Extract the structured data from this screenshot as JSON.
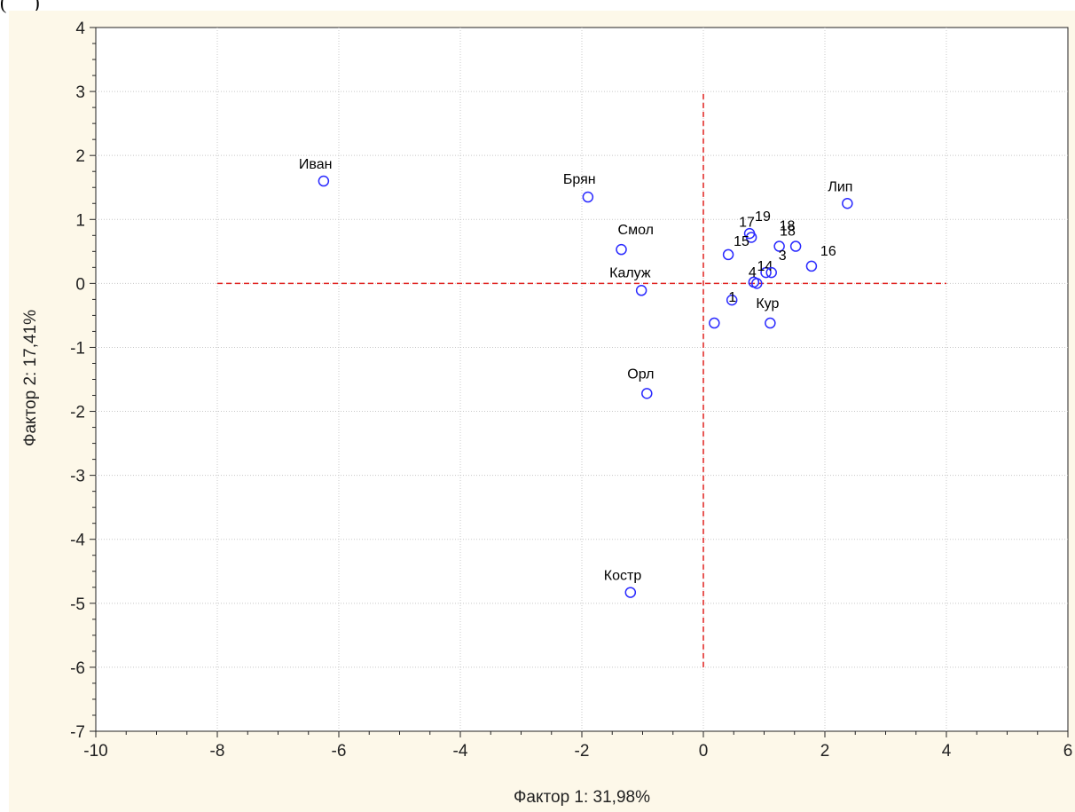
{
  "header": {
    "fragment": "(",
    "fragment_suffix": ")"
  },
  "chart_data": {
    "type": "scatter",
    "xlabel": "Фактор 1: 31,98%",
    "ylabel": "Фактор 2: 17,41%",
    "xlim": [
      -10,
      6
    ],
    "ylim": [
      -7,
      4
    ],
    "x_ticks": [
      "-10",
      "-8",
      "-6",
      "-4",
      "-2",
      "0",
      "2",
      "4",
      "6"
    ],
    "y_ticks": [
      "4",
      "3",
      "2",
      "1",
      "0",
      "-1",
      "-2",
      "-3",
      "-4",
      "-5",
      "-6",
      "-7"
    ],
    "grid": true,
    "marker_color": "#2a2aff",
    "reference_line_color": "#e0201e",
    "reference_lines": [
      {
        "orientation": "horizontal",
        "y": 0,
        "x_from": -8,
        "x_to": 4
      },
      {
        "orientation": "vertical",
        "x": 0,
        "y_from": -6,
        "y_to": 3
      }
    ],
    "points": [
      {
        "label": "Иван",
        "x": -6.25,
        "y": 1.6
      },
      {
        "label": "Брян",
        "x": -1.9,
        "y": 1.35
      },
      {
        "label": "Смол",
        "x": -1.35,
        "y": 0.53
      },
      {
        "label": "Калуж",
        "x": -1.02,
        "y": -0.11
      },
      {
        "label": "Орл",
        "x": -0.93,
        "y": -1.72
      },
      {
        "label": "Костр",
        "x": -1.2,
        "y": -4.83
      },
      {
        "label": "Лип",
        "x": 2.37,
        "y": 1.25
      },
      {
        "label": "Кур",
        "x": 1.1,
        "y": -0.62
      },
      {
        "label": "19",
        "x": 0.76,
        "y": 0.78
      },
      {
        "label": "17",
        "x": 0.79,
        "y": 0.72
      },
      {
        "label": "18",
        "x": 1.25,
        "y": 0.58
      },
      {
        "label": "18",
        "x": 1.52,
        "y": 0.58
      },
      {
        "label": "16",
        "x": 1.78,
        "y": 0.27
      },
      {
        "label": "15",
        "x": 0.41,
        "y": 0.45
      },
      {
        "label": "14",
        "x": 1.03,
        "y": 0.17
      },
      {
        "label": "3",
        "x": 1.12,
        "y": 0.17
      },
      {
        "label": "4",
        "x": 0.83,
        "y": 0.02
      },
      {
        "label": "",
        "x": 0.88,
        "y": 0.0
      },
      {
        "label": "1",
        "x": 0.47,
        "y": -0.26
      },
      {
        "label": "",
        "x": 0.18,
        "y": -0.62
      }
    ]
  }
}
